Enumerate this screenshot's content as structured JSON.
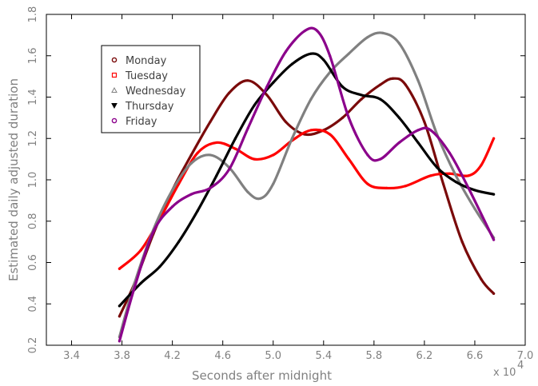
{
  "chart_data": {
    "type": "line",
    "title": "",
    "xlabel": "Seconds after midnight",
    "ylabel": "Estimated daily adjusted duration",
    "x_multiplier_label": "x 10",
    "x_multiplier_exponent": "4",
    "xlim": [
      3.2,
      7.0
    ],
    "ylim": [
      0.2,
      1.8
    ],
    "x_ticks": [
      "3.4",
      "3.8",
      "4.2",
      "4.6",
      "5.0",
      "5.4",
      "5.8",
      "6.2",
      "6.6",
      "7.0"
    ],
    "y_ticks": [
      "0.2",
      "0.4",
      "0.6",
      "0.8",
      "1.0",
      "1.2",
      "1.4",
      "1.6",
      "1.8"
    ],
    "grid": false,
    "legend_position": "top-left",
    "series": [
      {
        "name": "Monday",
        "color": "#7a0a0a",
        "marker": "circle",
        "points": [
          [
            3.78,
            0.34
          ],
          [
            3.9,
            0.5
          ],
          [
            4.05,
            0.74
          ],
          [
            4.2,
            0.95
          ],
          [
            4.35,
            1.12
          ],
          [
            4.5,
            1.28
          ],
          [
            4.65,
            1.42
          ],
          [
            4.8,
            1.48
          ],
          [
            4.95,
            1.41
          ],
          [
            5.1,
            1.28
          ],
          [
            5.25,
            1.22
          ],
          [
            5.4,
            1.24
          ],
          [
            5.55,
            1.3
          ],
          [
            5.7,
            1.39
          ],
          [
            5.85,
            1.46
          ],
          [
            5.95,
            1.49
          ],
          [
            6.05,
            1.46
          ],
          [
            6.2,
            1.28
          ],
          [
            6.35,
            0.98
          ],
          [
            6.5,
            0.7
          ],
          [
            6.65,
            0.52
          ],
          [
            6.75,
            0.45
          ]
        ]
      },
      {
        "name": "Tuesday",
        "color": "#ff0000",
        "marker": "square",
        "points": [
          [
            3.78,
            0.57
          ],
          [
            3.95,
            0.66
          ],
          [
            4.1,
            0.81
          ],
          [
            4.25,
            0.98
          ],
          [
            4.4,
            1.13
          ],
          [
            4.55,
            1.18
          ],
          [
            4.7,
            1.15
          ],
          [
            4.85,
            1.1
          ],
          [
            5.0,
            1.12
          ],
          [
            5.15,
            1.19
          ],
          [
            5.3,
            1.24
          ],
          [
            5.45,
            1.22
          ],
          [
            5.6,
            1.1
          ],
          [
            5.75,
            0.98
          ],
          [
            5.9,
            0.96
          ],
          [
            6.05,
            0.97
          ],
          [
            6.25,
            1.02
          ],
          [
            6.4,
            1.03
          ],
          [
            6.55,
            1.02
          ],
          [
            6.65,
            1.07
          ],
          [
            6.75,
            1.2
          ]
        ]
      },
      {
        "name": "Wednesday",
        "color": "#808080",
        "marker": "triangle-up",
        "points": [
          [
            3.78,
            0.24
          ],
          [
            3.9,
            0.5
          ],
          [
            4.05,
            0.76
          ],
          [
            4.2,
            0.95
          ],
          [
            4.35,
            1.08
          ],
          [
            4.5,
            1.12
          ],
          [
            4.65,
            1.06
          ],
          [
            4.8,
            0.94
          ],
          [
            4.9,
            0.91
          ],
          [
            5.0,
            0.98
          ],
          [
            5.15,
            1.2
          ],
          [
            5.3,
            1.39
          ],
          [
            5.45,
            1.52
          ],
          [
            5.6,
            1.61
          ],
          [
            5.75,
            1.69
          ],
          [
            5.87,
            1.71
          ],
          [
            6.0,
            1.66
          ],
          [
            6.15,
            1.48
          ],
          [
            6.3,
            1.22
          ],
          [
            6.45,
            1.02
          ],
          [
            6.6,
            0.86
          ],
          [
            6.75,
            0.72
          ]
        ]
      },
      {
        "name": "Thursday",
        "color": "#000000",
        "marker": "triangle-down",
        "points": [
          [
            3.78,
            0.39
          ],
          [
            3.95,
            0.5
          ],
          [
            4.1,
            0.58
          ],
          [
            4.25,
            0.7
          ],
          [
            4.4,
            0.85
          ],
          [
            4.55,
            1.02
          ],
          [
            4.7,
            1.2
          ],
          [
            4.85,
            1.36
          ],
          [
            5.0,
            1.47
          ],
          [
            5.15,
            1.56
          ],
          [
            5.3,
            1.61
          ],
          [
            5.4,
            1.58
          ],
          [
            5.55,
            1.45
          ],
          [
            5.7,
            1.41
          ],
          [
            5.85,
            1.39
          ],
          [
            6.0,
            1.3
          ],
          [
            6.15,
            1.18
          ],
          [
            6.3,
            1.06
          ],
          [
            6.45,
            0.99
          ],
          [
            6.6,
            0.95
          ],
          [
            6.75,
            0.93
          ]
        ]
      },
      {
        "name": "Friday",
        "color": "#8b008b",
        "marker": "circle",
        "points": [
          [
            3.78,
            0.22
          ],
          [
            3.9,
            0.48
          ],
          [
            4.05,
            0.75
          ],
          [
            4.2,
            0.87
          ],
          [
            4.35,
            0.93
          ],
          [
            4.5,
            0.96
          ],
          [
            4.65,
            1.05
          ],
          [
            4.8,
            1.25
          ],
          [
            4.95,
            1.45
          ],
          [
            5.1,
            1.62
          ],
          [
            5.25,
            1.72
          ],
          [
            5.35,
            1.72
          ],
          [
            5.45,
            1.6
          ],
          [
            5.6,
            1.3
          ],
          [
            5.75,
            1.12
          ],
          [
            5.85,
            1.1
          ],
          [
            6.0,
            1.18
          ],
          [
            6.15,
            1.24
          ],
          [
            6.25,
            1.24
          ],
          [
            6.4,
            1.13
          ],
          [
            6.55,
            0.96
          ],
          [
            6.75,
            0.71
          ]
        ]
      }
    ]
  }
}
